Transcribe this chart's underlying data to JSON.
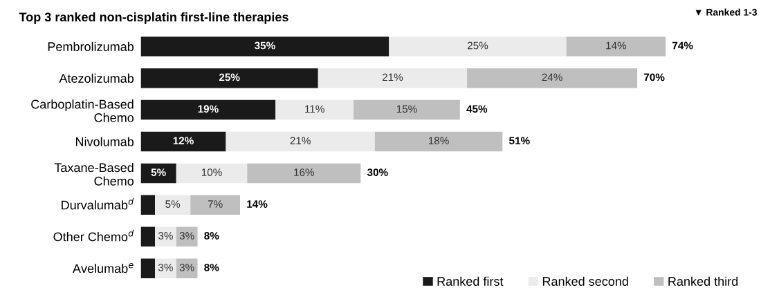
{
  "chart_data": {
    "type": "bar",
    "orientation": "horizontal",
    "stacked": true,
    "title": "Top 3 ranked non-cisplatin first-line therapies",
    "annotations": [
      "▼ Ranked 1-3"
    ],
    "categories": [
      "Pembrolizumab",
      "Atezolizumab",
      "Carboplatin-Based\nChemo",
      "Nivolumab",
      "Taxane-Based\nChemo",
      "Durvalumab$^{d}$",
      "Other Chemo$^{d}$",
      "Avelumab$^{e}$"
    ],
    "series": [
      {
        "name": "Ranked first",
        "color": "#1a1a1a",
        "values": [
          35,
          25,
          19,
          12,
          5,
          2,
          2,
          2
        ],
        "value_labels": [
          "35%",
          "25%",
          "19%",
          "12%",
          "5%",
          null,
          null,
          null
        ]
      },
      {
        "name": "Ranked second",
        "color": "#ebebeb",
        "values": [
          25,
          21,
          11,
          21,
          10,
          5,
          3,
          3
        ],
        "value_labels": [
          "25%",
          "21%",
          "11%",
          "21%",
          "10%",
          "5%",
          "3%",
          "3%"
        ]
      },
      {
        "name": "Ranked third",
        "color": "#bfbfbf",
        "values": [
          14,
          24,
          15,
          18,
          16,
          7,
          3,
          3
        ],
        "value_labels": [
          "14%",
          "24%",
          "15%",
          "18%",
          "16%",
          "7%",
          "3%",
          "3%"
        ]
      }
    ],
    "totals": [
      "74%",
      "70%",
      "45%",
      "51%",
      "30%",
      "14%",
      "8%",
      "8%"
    ],
    "grid": false,
    "legend": "bottom right",
    "tick_labels": "y"
  }
}
